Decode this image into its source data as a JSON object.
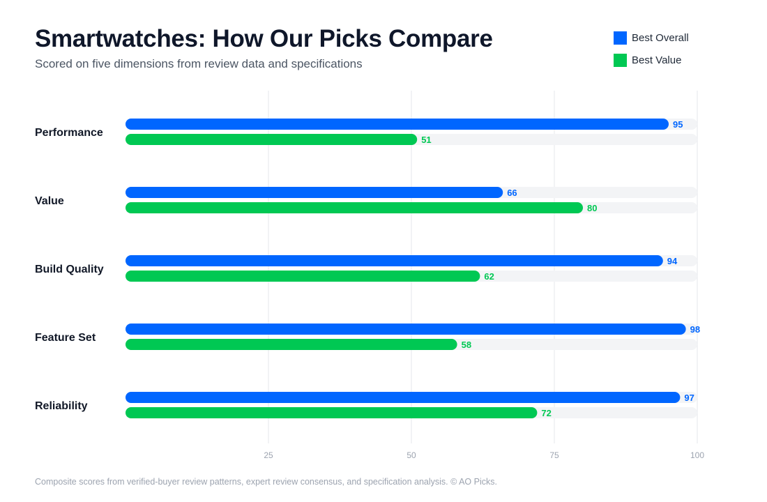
{
  "title": "Smartwatches: How Our Picks Compare",
  "subtitle": "Scored on five dimensions from review data and specifications",
  "footer": "Composite scores from verified-buyer review patterns, expert review consensus, and specification analysis. © AO Picks.",
  "colors": {
    "best_overall": "#0066ff",
    "best_value": "#00c853",
    "track": "#f3f4f6",
    "grid": "#e5e7eb"
  },
  "chart_data": {
    "type": "bar",
    "orientation": "horizontal",
    "categories": [
      "Performance",
      "Value",
      "Build Quality",
      "Feature Set",
      "Reliability"
    ],
    "series": [
      {
        "name": "Best Overall",
        "values": [
          95,
          66,
          94,
          98,
          97
        ]
      },
      {
        "name": "Best Value",
        "values": [
          51,
          80,
          62,
          58,
          72
        ]
      }
    ],
    "xlim": [
      0,
      100
    ],
    "xticks": [
      25,
      50,
      75,
      100
    ],
    "grid": true,
    "legend_position": "top-right",
    "data_labels": true
  }
}
